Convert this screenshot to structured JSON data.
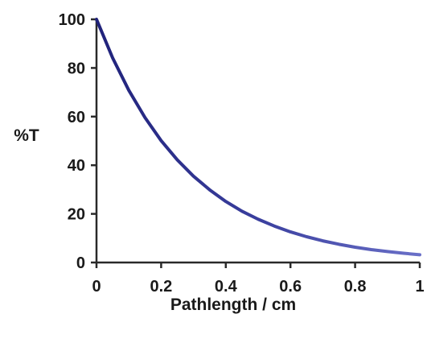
{
  "chart_data": {
    "type": "line",
    "xlabel": "Pathlength / cm",
    "ylabel": "%T",
    "xlim": [
      0,
      1
    ],
    "ylim": [
      0,
      100
    ],
    "x_ticks": [
      0,
      0.2,
      0.4,
      0.6,
      0.8,
      1
    ],
    "x_tick_labels": [
      "0",
      "0.2",
      "0.4",
      "0.6",
      "0.8",
      "1"
    ],
    "y_ticks": [
      0,
      20,
      40,
      60,
      80,
      100
    ],
    "y_tick_labels": [
      "0",
      "20",
      "40",
      "60",
      "80",
      "100"
    ],
    "grid": false,
    "series": [
      {
        "color": "#2b2f8f",
        "x": [
          0,
          0.05,
          0.1,
          0.15,
          0.2,
          0.25,
          0.3,
          0.35,
          0.4,
          0.45,
          0.5,
          0.55,
          0.6,
          0.65,
          0.7,
          0.75,
          0.8,
          0.85,
          0.9,
          0.95,
          1
        ],
        "y": [
          100,
          84.1,
          70.8,
          59.6,
          50.1,
          42.2,
          35.5,
          29.9,
          25.1,
          21.1,
          17.8,
          15.0,
          12.6,
          10.6,
          8.9,
          7.5,
          6.3,
          5.3,
          4.5,
          3.8,
          3.2
        ]
      }
    ]
  }
}
